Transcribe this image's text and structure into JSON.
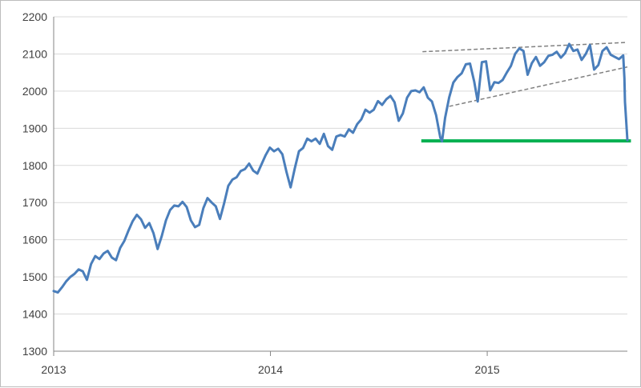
{
  "chart_data": {
    "type": "line",
    "title": "",
    "xlabel": "",
    "ylabel": "",
    "ylim": [
      1300,
      2200
    ],
    "yticks": [
      1300,
      1400,
      1500,
      1600,
      1700,
      1800,
      1900,
      2000,
      2100,
      2200
    ],
    "xticks": [
      {
        "label": "2013",
        "date": "2013-01-01"
      },
      {
        "label": "2014",
        "date": "2014-01-01"
      },
      {
        "label": "2015",
        "date": "2015-01-01"
      }
    ],
    "xlim": [
      "2013-01-01",
      "2015-08-25"
    ],
    "grid": "horizontal",
    "legend": "none",
    "colors": {
      "series": "#4a7ebb",
      "support": "#00b050",
      "trend": "#808080",
      "grid": "#d9d9d9",
      "axis": "#868686"
    },
    "series": [
      {
        "points": [
          [
            "2013-01-01",
            1462
          ],
          [
            "2013-01-08",
            1458
          ],
          [
            "2013-01-15",
            1472
          ],
          [
            "2013-01-22",
            1488
          ],
          [
            "2013-01-29",
            1500
          ],
          [
            "2013-02-05",
            1508
          ],
          [
            "2013-02-12",
            1520
          ],
          [
            "2013-02-19",
            1515
          ],
          [
            "2013-02-26",
            1492
          ],
          [
            "2013-03-05",
            1535
          ],
          [
            "2013-03-12",
            1556
          ],
          [
            "2013-03-19",
            1548
          ],
          [
            "2013-03-26",
            1563
          ],
          [
            "2013-04-02",
            1570
          ],
          [
            "2013-04-09",
            1552
          ],
          [
            "2013-04-16",
            1545
          ],
          [
            "2013-04-23",
            1578
          ],
          [
            "2013-04-30",
            1597
          ],
          [
            "2013-05-07",
            1625
          ],
          [
            "2013-05-14",
            1650
          ],
          [
            "2013-05-21",
            1667
          ],
          [
            "2013-05-28",
            1655
          ],
          [
            "2013-06-04",
            1632
          ],
          [
            "2013-06-11",
            1645
          ],
          [
            "2013-06-18",
            1618
          ],
          [
            "2013-06-25",
            1575
          ],
          [
            "2013-07-02",
            1610
          ],
          [
            "2013-07-09",
            1652
          ],
          [
            "2013-07-16",
            1680
          ],
          [
            "2013-07-23",
            1692
          ],
          [
            "2013-07-30",
            1690
          ],
          [
            "2013-08-06",
            1702
          ],
          [
            "2013-08-13",
            1688
          ],
          [
            "2013-08-20",
            1652
          ],
          [
            "2013-08-27",
            1634
          ],
          [
            "2013-09-03",
            1640
          ],
          [
            "2013-09-10",
            1685
          ],
          [
            "2013-09-17",
            1712
          ],
          [
            "2013-09-24",
            1700
          ],
          [
            "2013-10-01",
            1690
          ],
          [
            "2013-10-08",
            1656
          ],
          [
            "2013-10-15",
            1698
          ],
          [
            "2013-10-22",
            1745
          ],
          [
            "2013-10-29",
            1762
          ],
          [
            "2013-11-05",
            1768
          ],
          [
            "2013-11-12",
            1785
          ],
          [
            "2013-11-19",
            1790
          ],
          [
            "2013-11-26",
            1805
          ],
          [
            "2013-12-03",
            1786
          ],
          [
            "2013-12-10",
            1778
          ],
          [
            "2013-12-17",
            1803
          ],
          [
            "2013-12-24",
            1828
          ],
          [
            "2013-12-31",
            1848
          ],
          [
            "2014-01-07",
            1838
          ],
          [
            "2014-01-14",
            1845
          ],
          [
            "2014-01-21",
            1830
          ],
          [
            "2014-01-28",
            1782
          ],
          [
            "2014-02-04",
            1741
          ],
          [
            "2014-02-11",
            1792
          ],
          [
            "2014-02-18",
            1838
          ],
          [
            "2014-02-25",
            1847
          ],
          [
            "2014-03-04",
            1872
          ],
          [
            "2014-03-11",
            1865
          ],
          [
            "2014-03-18",
            1872
          ],
          [
            "2014-03-25",
            1858
          ],
          [
            "2014-04-01",
            1885
          ],
          [
            "2014-04-08",
            1852
          ],
          [
            "2014-04-15",
            1842
          ],
          [
            "2014-04-22",
            1878
          ],
          [
            "2014-04-29",
            1882
          ],
          [
            "2014-05-06",
            1878
          ],
          [
            "2014-05-13",
            1897
          ],
          [
            "2014-05-20",
            1888
          ],
          [
            "2014-05-27",
            1911
          ],
          [
            "2014-06-03",
            1924
          ],
          [
            "2014-06-10",
            1950
          ],
          [
            "2014-06-17",
            1942
          ],
          [
            "2014-06-24",
            1950
          ],
          [
            "2014-07-01",
            1973
          ],
          [
            "2014-07-08",
            1963
          ],
          [
            "2014-07-15",
            1978
          ],
          [
            "2014-07-22",
            1987
          ],
          [
            "2014-07-29",
            1970
          ],
          [
            "2014-08-05",
            1920
          ],
          [
            "2014-08-12",
            1940
          ],
          [
            "2014-08-19",
            1982
          ],
          [
            "2014-08-26",
            2000
          ],
          [
            "2014-09-02",
            2002
          ],
          [
            "2014-09-09",
            1997
          ],
          [
            "2014-09-16",
            2010
          ],
          [
            "2014-09-23",
            1982
          ],
          [
            "2014-09-30",
            1972
          ],
          [
            "2014-10-07",
            1935
          ],
          [
            "2014-10-14",
            1875
          ],
          [
            "2014-10-17",
            1865
          ],
          [
            "2014-10-22",
            1928
          ],
          [
            "2014-10-29",
            1983
          ],
          [
            "2014-11-05",
            2023
          ],
          [
            "2014-11-12",
            2038
          ],
          [
            "2014-11-19",
            2048
          ],
          [
            "2014-11-26",
            2072
          ],
          [
            "2014-12-03",
            2074
          ],
          [
            "2014-12-10",
            2026
          ],
          [
            "2014-12-16",
            1972
          ],
          [
            "2014-12-23",
            2078
          ],
          [
            "2014-12-30",
            2080
          ],
          [
            "2015-01-06",
            2002
          ],
          [
            "2015-01-13",
            2024
          ],
          [
            "2015-01-20",
            2022
          ],
          [
            "2015-01-27",
            2030
          ],
          [
            "2015-02-03",
            2050
          ],
          [
            "2015-02-10",
            2068
          ],
          [
            "2015-02-17",
            2100
          ],
          [
            "2015-02-24",
            2115
          ],
          [
            "2015-03-03",
            2108
          ],
          [
            "2015-03-10",
            2044
          ],
          [
            "2015-03-17",
            2075
          ],
          [
            "2015-03-24",
            2092
          ],
          [
            "2015-03-31",
            2068
          ],
          [
            "2015-04-07",
            2078
          ],
          [
            "2015-04-14",
            2095
          ],
          [
            "2015-04-21",
            2098
          ],
          [
            "2015-04-28",
            2106
          ],
          [
            "2015-05-05",
            2090
          ],
          [
            "2015-05-12",
            2102
          ],
          [
            "2015-05-19",
            2127
          ],
          [
            "2015-05-26",
            2108
          ],
          [
            "2015-06-02",
            2112
          ],
          [
            "2015-06-09",
            2084
          ],
          [
            "2015-06-16",
            2100
          ],
          [
            "2015-06-23",
            2124
          ],
          [
            "2015-06-30",
            2058
          ],
          [
            "2015-07-07",
            2070
          ],
          [
            "2015-07-14",
            2108
          ],
          [
            "2015-07-21",
            2118
          ],
          [
            "2015-07-28",
            2098
          ],
          [
            "2015-08-04",
            2092
          ],
          [
            "2015-08-11",
            2086
          ],
          [
            "2015-08-18",
            2096
          ],
          [
            "2015-08-20",
            2035
          ],
          [
            "2015-08-21",
            1971
          ],
          [
            "2015-08-24",
            1893
          ],
          [
            "2015-08-25",
            1868
          ]
        ]
      }
    ],
    "annotations": [
      {
        "kind": "support-line",
        "from": [
          "2014-09-12",
          1866
        ],
        "to": [
          "2015-08-31",
          1866
        ]
      },
      {
        "kind": "upper-trendline",
        "from": [
          "2014-09-14",
          2106
        ],
        "to": [
          "2015-08-25",
          2131
        ]
      },
      {
        "kind": "lower-trendline",
        "from": [
          "2014-10-29",
          1959
        ],
        "to": [
          "2015-08-25",
          2065
        ]
      }
    ]
  }
}
